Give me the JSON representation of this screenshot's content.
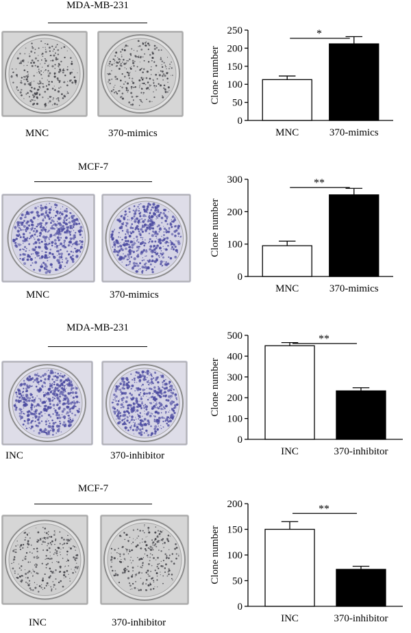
{
  "colors": {
    "white_bar": "#ffffff",
    "black_bar": "#000000",
    "stain_blue": "#4b4aa0",
    "stain_gray": "#3a3a40"
  },
  "panels": [
    {
      "cell_line": "MDA-MB-231",
      "stain": "gray",
      "left_label": "MNC",
      "right_label": "370-mimics"
    },
    {
      "cell_line": "MCF-7",
      "stain": "blue",
      "left_label": "MNC",
      "right_label": "370-mimics"
    },
    {
      "cell_line": "MDA-MB-231",
      "stain": "blue",
      "left_label": "INC",
      "right_label": "370-inhibitor"
    },
    {
      "cell_line": "MCF-7",
      "stain": "gray",
      "left_label": "INC",
      "right_label": "370-inhibitor"
    }
  ],
  "chart_data": [
    {
      "type": "bar",
      "categories": [
        "MNC",
        "370-mimics"
      ],
      "values": [
        113,
        212
      ],
      "errors": [
        10,
        20
      ],
      "ylabel": "Clone number",
      "ylim": [
        0,
        250
      ],
      "yticks": [
        0,
        50,
        100,
        150,
        200,
        250
      ],
      "significance": "*"
    },
    {
      "type": "bar",
      "categories": [
        "MNC",
        "370-mimics"
      ],
      "values": [
        95,
        252
      ],
      "errors": [
        14,
        20
      ],
      "ylabel": "Clone number",
      "ylim": [
        0,
        300
      ],
      "yticks": [
        0,
        100,
        200,
        300
      ],
      "significance": "**"
    },
    {
      "type": "bar",
      "categories": [
        "INC",
        "370-inhibitor"
      ],
      "values": [
        450,
        233
      ],
      "errors": [
        15,
        15
      ],
      "ylabel": "Clone number",
      "ylim": [
        0,
        500
      ],
      "yticks": [
        0,
        100,
        200,
        300,
        400,
        500
      ],
      "significance": "**"
    },
    {
      "type": "bar",
      "categories": [
        "INC",
        "370-inhibitor"
      ],
      "values": [
        150,
        72
      ],
      "errors": [
        15,
        6
      ],
      "ylabel": "Clone number",
      "ylim": [
        0,
        200
      ],
      "yticks": [
        0,
        50,
        100,
        150,
        200
      ],
      "significance": "**"
    }
  ]
}
